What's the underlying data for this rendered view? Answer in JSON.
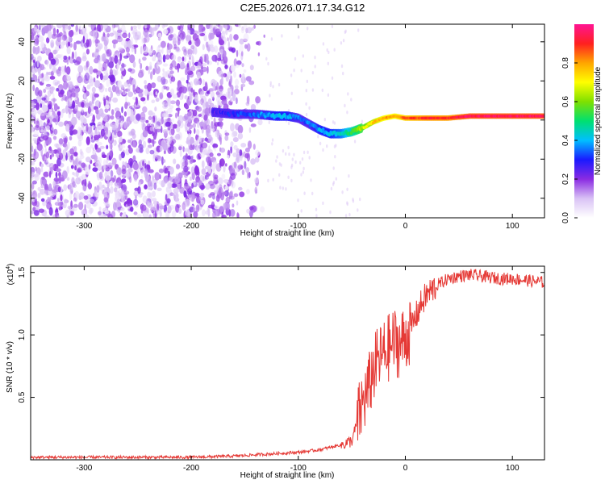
{
  "figure_title": "C2E5.2026.071.17.34.G12",
  "colors": {
    "snr_line": "#e53935",
    "axis": "#000000",
    "ridge_core": "#ff2020"
  },
  "chart_data": [
    {
      "type": "heatmap",
      "title": "C2E5.2026.071.17.34.G12",
      "xlabel": "Height of straight line (km)",
      "ylabel": "Frequency (Hz)",
      "xlim": [
        -350,
        130
      ],
      "ylim": [
        -50,
        49
      ],
      "xticks": [
        -300,
        -200,
        -100,
        0,
        100
      ],
      "yticks": [
        -40,
        -20,
        0,
        20,
        40
      ],
      "colorbar": {
        "label": "Normalized spectral amplitude",
        "range": [
          0.0,
          1.0
        ],
        "ticks": [
          0.0,
          0.2,
          0.4,
          0.6,
          0.8
        ],
        "tick_labels": [
          "0.0",
          "0.2",
          "0.4",
          "0.6",
          "0.8"
        ]
      },
      "noise_region": {
        "x_start": -350,
        "x_end": -130,
        "dense_until": -175,
        "typical_amplitude": 0.1
      },
      "ridge": {
        "description": "Frequency of the dominant spectral ridge vs height",
        "x": [
          -180,
          -160,
          -140,
          -120,
          -110,
          -100,
          -90,
          -80,
          -70,
          -60,
          -50,
          -40,
          -30,
          -20,
          -10,
          0,
          20,
          40,
          60,
          80,
          100,
          130
        ],
        "y": [
          4,
          3,
          3,
          2,
          2,
          1,
          -2,
          -5,
          -7,
          -7,
          -6,
          -4,
          -1,
          1,
          2,
          1,
          1,
          1,
          2,
          2,
          2,
          2
        ],
        "amplitude": [
          0.25,
          0.3,
          0.35,
          0.4,
          0.4,
          0.35,
          0.35,
          0.4,
          0.4,
          0.45,
          0.55,
          0.65,
          0.75,
          0.8,
          0.8,
          0.85,
          0.9,
          0.9,
          0.95,
          0.95,
          0.95,
          0.95
        ]
      }
    },
    {
      "type": "line",
      "xlabel": "Height of straight line (km)",
      "ylabel": "SNR (10 * v/v)",
      "yscale_label": "(x10",
      "yscale_exp": "4",
      "yscale_close": ")",
      "xlim": [
        -350,
        130
      ],
      "ylim": [
        0.0,
        1.55
      ],
      "xticks": [
        -300,
        -200,
        -100,
        0,
        100
      ],
      "yticks": [
        0.5,
        1.0,
        1.5
      ],
      "ytick_labels": [
        "0.5",
        "1.0",
        "1.5"
      ],
      "series": [
        {
          "name": "SNR",
          "x": [
            -350,
            -300,
            -250,
            -200,
            -160,
            -140,
            -120,
            -100,
            -80,
            -70,
            -60,
            -50,
            -45,
            -40,
            -35,
            -30,
            -25,
            -20,
            -15,
            -10,
            -5,
            0,
            5,
            10,
            15,
            20,
            30,
            40,
            50,
            60,
            70,
            80,
            90,
            100,
            110,
            120,
            130
          ],
          "values": [
            0.02,
            0.02,
            0.02,
            0.02,
            0.03,
            0.04,
            0.05,
            0.06,
            0.08,
            0.1,
            0.12,
            0.15,
            0.3,
            0.45,
            0.55,
            0.72,
            0.8,
            0.85,
            0.9,
            0.95,
            0.92,
            0.98,
            1.05,
            1.15,
            1.25,
            1.32,
            1.4,
            1.45,
            1.47,
            1.48,
            1.47,
            1.46,
            1.45,
            1.45,
            1.44,
            1.43,
            1.42
          ]
        }
      ]
    }
  ]
}
